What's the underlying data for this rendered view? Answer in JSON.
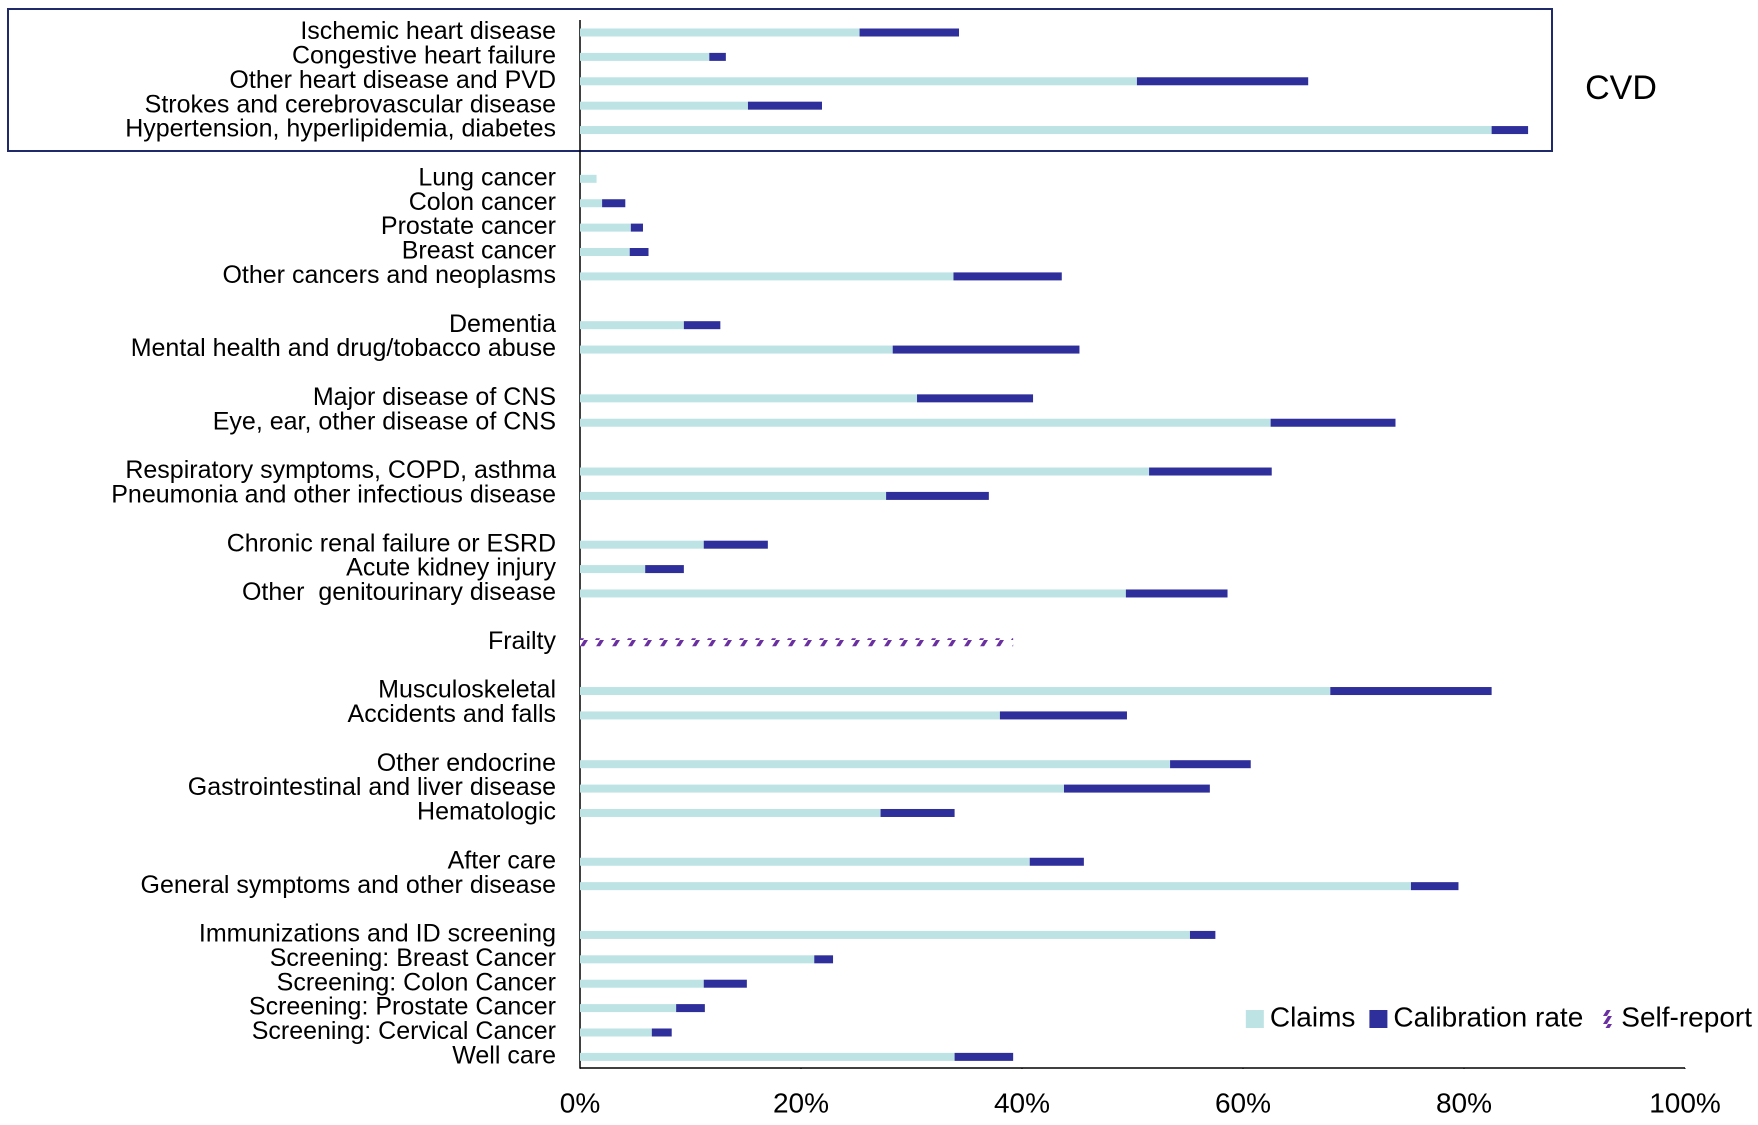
{
  "chart_data": {
    "type": "stacked_bar_horizontal",
    "annotation": "CVD",
    "categories": [
      "Ischemic heart disease",
      "Congestive heart failure",
      "Other heart disease and PVD",
      "Strokes and cerebrovascular disease",
      "Hypertension, hyperlipidemia, diabetes",
      null,
      "Lung cancer",
      "Colon cancer",
      "Prostate cancer",
      "Breast cancer",
      "Other cancers and neoplasms",
      null,
      "Dementia",
      "Mental health and drug/tobacco abuse",
      null,
      "Major disease of CNS",
      "Eye, ear, other disease of CNS",
      null,
      "Respiratory symptoms, COPD, asthma",
      "Pneumonia and other infectious disease",
      null,
      "Chronic renal failure or ESRD",
      "Acute kidney injury",
      "Other  genitourinary disease",
      null,
      "Frailty",
      null,
      "Musculoskeletal",
      "Accidents and falls",
      null,
      "Other endocrine",
      "Gastrointestinal and liver disease",
      "Hematologic",
      null,
      "After care",
      "General symptoms and other disease",
      null,
      "Immunizations and ID screening",
      "Screening: Breast Cancer",
      "Screening: Colon Cancer",
      "Screening: Prostate Cancer",
      "Screening: Cervical Cancer",
      "Well care"
    ],
    "series": [
      {
        "name": "Claims",
        "color": "#bde3e5",
        "values": [
          25.3,
          11.7,
          50.4,
          15.2,
          82.5,
          null,
          1.5,
          2.0,
          4.6,
          4.5,
          33.8,
          null,
          9.4,
          28.3,
          null,
          30.5,
          62.5,
          null,
          51.5,
          27.7,
          null,
          11.2,
          5.9,
          49.4,
          null,
          null,
          null,
          67.9,
          38.0,
          null,
          53.4,
          43.8,
          27.2,
          null,
          40.7,
          75.2,
          null,
          55.2,
          21.2,
          11.2,
          8.7,
          6.5,
          33.9
        ]
      },
      {
        "name": "Calibration rate",
        "color": "#2f2f9c",
        "values": [
          9.0,
          1.5,
          15.5,
          6.7,
          3.3,
          null,
          null,
          2.1,
          1.1,
          1.7,
          9.8,
          null,
          3.3,
          16.9,
          null,
          10.5,
          11.3,
          null,
          11.1,
          9.3,
          null,
          5.8,
          3.5,
          9.2,
          null,
          null,
          null,
          14.6,
          11.5,
          null,
          7.3,
          13.2,
          6.7,
          null,
          4.9,
          4.3,
          null,
          2.3,
          1.7,
          3.9,
          2.6,
          1.8,
          5.3
        ]
      },
      {
        "name": "Self-report",
        "color": "#6a2fa0",
        "hatch": true,
        "values": [
          null,
          null,
          null,
          null,
          null,
          null,
          null,
          null,
          null,
          null,
          null,
          null,
          null,
          null,
          null,
          null,
          null,
          null,
          null,
          null,
          null,
          null,
          null,
          null,
          null,
          39.2,
          null,
          null,
          null,
          null,
          null,
          null,
          null,
          null,
          null,
          null,
          null,
          null,
          null,
          null,
          null,
          null,
          null
        ]
      }
    ],
    "xlim": [
      0,
      100
    ],
    "xticks": [
      {
        "value": 0,
        "label": "0%"
      },
      {
        "value": 20,
        "label": "20%"
      },
      {
        "value": 40,
        "label": "40%"
      },
      {
        "value": 60,
        "label": "60%"
      },
      {
        "value": 80,
        "label": "80%"
      },
      {
        "value": 100,
        "label": "100%"
      }
    ],
    "legend": "lower right"
  }
}
